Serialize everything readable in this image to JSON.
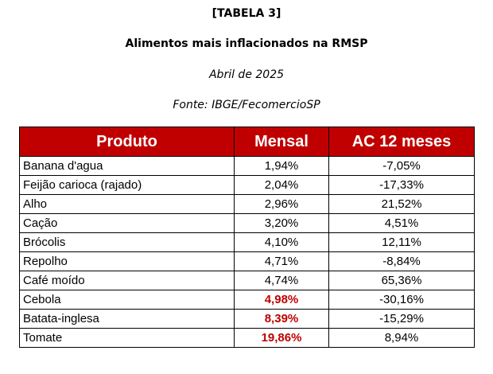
{
  "header": {
    "tag": "[TABELA 3]",
    "title": "Alimentos mais inflacionados na RMSP",
    "date": "Abril de 2025",
    "source": "Fonte: IBGE/FecomercioSP"
  },
  "table": {
    "columns": [
      "Produto",
      "Mensal",
      "AC 12 meses"
    ],
    "highlight_color": "#c00000",
    "header_background": "#c00000",
    "rows": [
      {
        "produto": "Banana d'agua",
        "mensal": "1,94%",
        "ac12": "-7,05%",
        "highlight": false
      },
      {
        "produto": "Feijão carioca (rajado)",
        "mensal": "2,04%",
        "ac12": "-17,33%",
        "highlight": false
      },
      {
        "produto": "Alho",
        "mensal": "2,96%",
        "ac12": "21,52%",
        "highlight": false
      },
      {
        "produto": "Cação",
        "mensal": "3,20%",
        "ac12": "4,51%",
        "highlight": false
      },
      {
        "produto": "Brócolis",
        "mensal": "4,10%",
        "ac12": "12,11%",
        "highlight": false
      },
      {
        "produto": "Repolho",
        "mensal": "4,71%",
        "ac12": "-8,84%",
        "highlight": false
      },
      {
        "produto": "Café moído",
        "mensal": "4,74%",
        "ac12": "65,36%",
        "highlight": false
      },
      {
        "produto": "Cebola",
        "mensal": "4,98%",
        "ac12": "-30,16%",
        "highlight": true
      },
      {
        "produto": "Batata-inglesa",
        "mensal": "8,39%",
        "ac12": "-15,29%",
        "highlight": true
      },
      {
        "produto": "Tomate",
        "mensal": "19,86%",
        "ac12": "8,94%",
        "highlight": true
      }
    ]
  }
}
